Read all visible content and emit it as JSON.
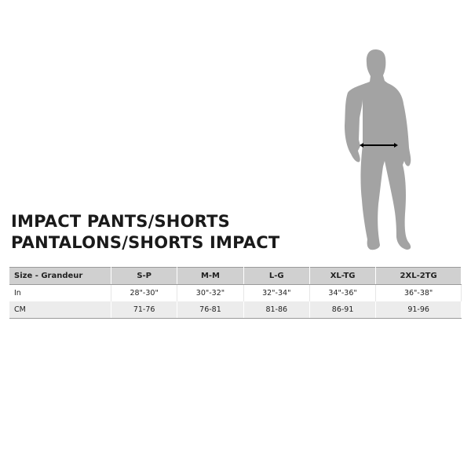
{
  "title_line1": "IMPACT PANTS/SHORTS",
  "title_line2": "PANTALONS/SHORTS IMPACT",
  "figure_icon": "human-silhouette-waist-measurement",
  "table": {
    "headers": [
      "Size - Grandeur",
      "S-P",
      "M-M",
      "L-G",
      "XL-TG",
      "2XL-2TG"
    ],
    "rows": [
      [
        "In",
        "28\"-30\"",
        "30\"-32\"",
        "32\"-34\"",
        "34\"-36\"",
        "36\"-38\""
      ],
      [
        "CM",
        "71-76",
        "76-81",
        "81-86",
        "86-91",
        "91-96"
      ]
    ]
  },
  "colors": {
    "silhouette": "#a3a3a3",
    "header_bg": "#d0d0d0",
    "alt_row_bg": "#ececec"
  }
}
